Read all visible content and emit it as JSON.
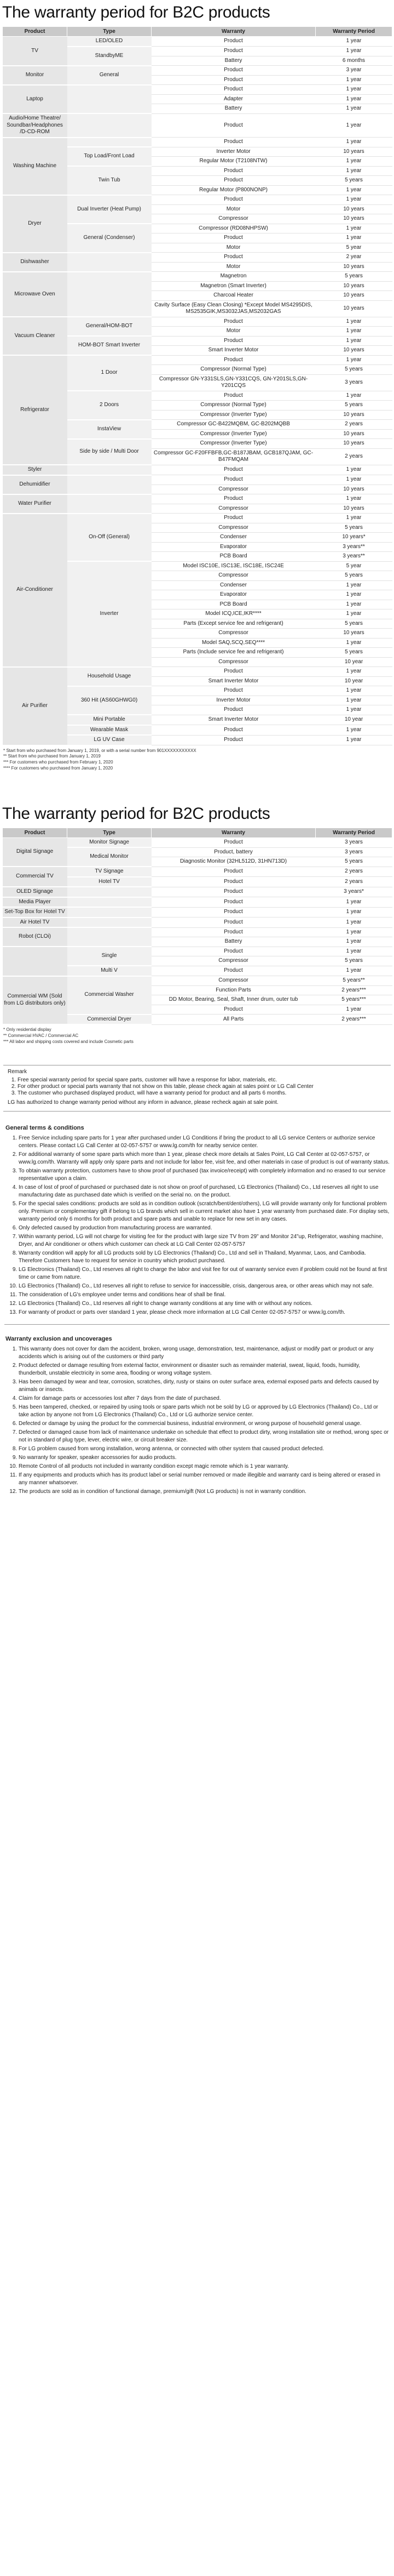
{
  "b2c": {
    "title": "The warranty period for B2C products",
    "headers": [
      "Product",
      "Type",
      "Warranty",
      "Warranty Period"
    ],
    "rows": [
      [
        "TV|3",
        "LED/OLED",
        "Product",
        "1 year"
      ],
      [
        "",
        "StandbyME|2",
        "Product",
        "1 year"
      ],
      [
        "",
        "",
        "Battery",
        "6 months"
      ],
      [
        "Monitor|2",
        "General|2",
        "Product",
        "3 year"
      ],
      [
        "",
        "",
        "Product",
        "1 year"
      ],
      [
        "Laptop|3",
        "|3",
        "Product",
        "1 year"
      ],
      [
        "",
        "",
        "Adapter",
        "1 year"
      ],
      [
        "",
        "",
        "Battery",
        "1 year"
      ],
      [
        "Audio/Home Theatre/ Soundbar/Headphones /D-CD-ROM",
        "",
        "Product",
        "1 year"
      ],
      [
        "Washing Machine|6",
        "|1",
        "Product",
        "1 year"
      ],
      [
        "",
        "Top Load/Front Load|2",
        "Inverter Motor",
        "10 years"
      ],
      [
        "",
        "",
        "Regular Motor  (T2108NTW)",
        "1 year"
      ],
      [
        "",
        "Twin Tub|3",
        "Product",
        "1 year"
      ],
      [
        "",
        "",
        "Product",
        "5 years"
      ],
      [
        "",
        "",
        "Regular Motor (P800NONP)",
        "1 year"
      ],
      [
        "Dryer|6",
        "Dual Inverter (Heat Pump)|3",
        "Product",
        "1 year"
      ],
      [
        "",
        "",
        "Motor",
        "10 years"
      ],
      [
        "",
        "",
        "Compressor",
        "10 years"
      ],
      [
        "",
        "General (Condenser)|3",
        "Compressor (RD08NHPSW)",
        "1 year"
      ],
      [
        "",
        "",
        "Product",
        "1 year"
      ],
      [
        "",
        "",
        "Motor",
        "5 year"
      ],
      [
        "Dishwasher|2",
        "|2",
        "Product",
        "2 year"
      ],
      [
        "",
        "",
        "Motor",
        "10 years"
      ],
      [
        "Microwave Oven|4",
        "|4",
        "Magnetron",
        "5 years"
      ],
      [
        "",
        "",
        "Magnetron (Smart Inverter)",
        "10 years"
      ],
      [
        "",
        "",
        "Charcoal Heater",
        "10 years"
      ],
      [
        "",
        "",
        "Cavity Surface (Easy Clean Closing) *Except Model MS4295DIS, MS2535GIK,MS3032JAS,MS2032GAS",
        "10 years"
      ],
      [
        "Vacuum Cleaner|4",
        "General/HOM-BOT|2",
        "Product",
        "1 year"
      ],
      [
        "",
        "",
        "Motor",
        "1 year"
      ],
      [
        "",
        "HOM-BOT Smart Inverter|2",
        "Product",
        "1 year"
      ],
      [
        "",
        "",
        "Smart Inverter Motor",
        "10 years"
      ],
      [
        "Refrigerator|10",
        "1 Door|3",
        "Product",
        "1 year"
      ],
      [
        "",
        "",
        "Compressor (Normal Type)",
        "5 years"
      ],
      [
        "",
        "",
        "Compressor GN-Y331SLS,GN-Y331CQS, GN-Y201SLS,GN-Y201CQS",
        "3 years"
      ],
      [
        "",
        "2 Doors|3",
        "Product",
        "1 year"
      ],
      [
        "",
        "",
        "Compressor (Normal Type)",
        "5 years"
      ],
      [
        "",
        "",
        "Compressor (Inverter Type)",
        "10 years"
      ],
      [
        "",
        "InstaView|2",
        "Compressor GC-B422MQBM, GC-B202MQBB",
        "2 years"
      ],
      [
        "",
        "",
        "Compressor (Inverter Type)",
        "10 years"
      ],
      [
        "",
        "Side by side / Multi Door|2",
        "Compressor (Inverter Type)",
        "10 years"
      ],
      [
        "",
        "",
        "Compressor GC-F20FFBFB,GC-B187JBAM, GCB187QJAM, GC-B47FMQAM",
        "2 years"
      ],
      [
        "Styler",
        "",
        "Product",
        "1 year"
      ],
      [
        "Dehumidifier|2",
        "|2",
        "Product",
        "1 year"
      ],
      [
        "",
        "",
        "Compressor",
        "10 years"
      ],
      [
        "Water Purifier|2",
        "|2",
        "Product",
        "1 year"
      ],
      [
        "",
        "",
        "Compressor",
        "10 years"
      ],
      [
        "Air-Conditioner|16",
        "On-Off (General)|5",
        "Product",
        "1 year"
      ],
      [
        "",
        "",
        "Compressor",
        "5 years"
      ],
      [
        "",
        "",
        "Condenser",
        "10 years*"
      ],
      [
        "",
        "",
        "Evaporator",
        "3 years**"
      ],
      [
        "",
        "",
        "PCB Board",
        "3 years**"
      ],
      [
        "",
        "Inverter|11",
        "Model ISC10E, ISC13E, ISC18E, ISC24E",
        "5 year"
      ],
      [
        "",
        "",
        "Compressor",
        "5 years"
      ],
      [
        "",
        "",
        "Condenser",
        "1 year"
      ],
      [
        "",
        "",
        "Evaporator",
        "1 year"
      ],
      [
        "",
        "",
        "PCB Board",
        "1 year"
      ],
      [
        "",
        "",
        "Model ICQ,ICE,IKR****",
        "1 year"
      ],
      [
        "",
        "",
        "Parts (Except service fee and refrigerant)",
        "5 years"
      ],
      [
        "",
        "",
        "Compressor",
        "10 years"
      ],
      [
        "",
        "",
        "Model SAQ,SCQ,SEQ****",
        "1 year"
      ],
      [
        "",
        "",
        "Parts (Include service fee and refrigerant)",
        "5 years"
      ],
      [
        "",
        "",
        "Compressor",
        "10 year"
      ],
      [
        "Air Purifier|8",
        "Household Usage|2",
        "Product",
        "1 year"
      ],
      [
        "",
        "",
        "Smart Inverter Motor",
        "10 year"
      ],
      [
        "",
        "360 Hit (AS60GHWG0)|3",
        "Product",
        "1 year"
      ],
      [
        "",
        "",
        "Inverter Motor",
        "1 year"
      ],
      [
        "",
        "",
        "Product",
        "1 year"
      ],
      [
        "",
        "Mini Portable|1",
        "Smart Inverter Motor",
        "10 year"
      ],
      [
        "",
        "Wearable Mask|1",
        "Product",
        "1 year"
      ],
      [
        "",
        "LG UV Case|1",
        "Product",
        "1 year"
      ]
    ],
    "notes": [
      "* Start from who purchased from January 1, 2019, or with a serial number from 901XXXXXXXXXXX",
      "** Start from who purchased from January 1, 2019",
      "*** For customers who purchased from February 1, 2020",
      "**** For customers who purchased from January 1, 2020"
    ]
  },
  "b2b": {
    "title": "The warranty period for B2C products",
    "headers": [
      "Product",
      "Type",
      "Warranty",
      "Warranty Period"
    ],
    "rows": [
      [
        "Digital Signage|3",
        "Monitor Signage",
        "Product",
        "3 years"
      ],
      [
        "",
        "Medical Monitor|2",
        "Product, battery",
        "3 years"
      ],
      [
        "",
        "",
        "Diagnostic Monitor (32HL512D, 31HN713D)",
        "5 years"
      ],
      [
        "Commercial TV|2",
        "TV Signage",
        "Product",
        "2 years"
      ],
      [
        "",
        "Hotel TV",
        "Product",
        "2 years"
      ],
      [
        "OLED Signage",
        "",
        "Product",
        "3 years*"
      ],
      [
        "Media Player",
        "",
        "Product",
        "1 year"
      ],
      [
        "Set-Top Box for Hotel TV",
        "",
        "Product",
        "1 year"
      ],
      [
        "Air Hotel TV",
        "",
        "Product",
        "1 year"
      ],
      [
        "Robot (CLOi)|2",
        "|2",
        "Product",
        "1 year"
      ],
      [
        "",
        "",
        "Battery",
        "1 year"
      ],
      [
        "|3",
        "Single|2",
        "Product",
        "1 year"
      ],
      [
        "",
        "",
        "Compressor",
        "5 years"
      ],
      [
        "",
        "Multi V",
        "Product",
        "1 year"
      ],
      [
        "Commercial WM (Sold from LG distributors only)|5",
        "Commercial Washer|4",
        "Compressor",
        "5 years**"
      ],
      [
        "",
        "",
        "Function Parts",
        "2 years***"
      ],
      [
        "",
        "",
        "DD Motor, Bearing, Seal, Shaft, Inner drum, outer tub",
        "5 years***"
      ],
      [
        "",
        "",
        "Product",
        "1 year"
      ],
      [
        "",
        "Commercial Dryer|1",
        "All Parts",
        "2 years***"
      ]
    ],
    "notes": [
      "* Only residential display",
      "** Commercial HVAC / Commercial AC",
      "*** All labor and shipping costs covered and include Cosmetic parts"
    ]
  },
  "remark": {
    "title": "Remark",
    "items": [
      "Free special warranty period for special spare parts, customer will have a response for labor, materials, etc.",
      "For other product or special parts warranty that not show on this table, please check again at sales point or LG Call Center",
      "The customer who purchased displayed product, will have a warranty period for product and all parts 6 months."
    ],
    "footer": "LG has authorized to change warranty period without any inform in advance, please recheck again at sale point."
  },
  "terms": {
    "title": "General terms & conditions",
    "items": [
      "Free Service including spare parts for 1 year after purchased under LG Conditions if bring the product to all LG service Centers or authorize service centers. Please contact LG Call Center at 02-057-5757 or www.lg.com/th for nearby service center.",
      "For additional warranty of some spare parts which more than 1 year, please check more details at Sales Point, LG Call Center at 02-057-5757, or www.lg.com/th. Warranty will apply only spare parts and not include for labor fee, visit fee, and other materials in case of product is out of warranty status.",
      "To obtain warranty protection, customers have to show proof of purchased (tax invoice/receipt) with completely information and no erased to our service representative upon a claim.",
      "In case of lost of proof of purchased or purchased date is not show on proof of purchased, LG Electronics (Thailand) Co., Ltd reserves all right to use manufacturing date as purchased date which is verified on the serial no. on the product.",
      "For the special sales conditions: products are sold as in condition outlook (scratch/bent/dent/others), LG will provide warranty only for functional problem only. Premium or complementary gift if belong to LG brands which sell in current market also have 1 year warranty from purchased date. For display sets, warranty period only 6 months for both product and spare parts and unable to replace for new set in any cases.",
      "Only defected caused by production from manufacturing process are warranted.",
      "Within warranty period, LG will not charge for visiting fee for the product with large size TV from 29\" and Monitor 24\"up, Refrigerator, washing machine, Dryer, and Air conditioner or others which customer can check at LG Call Center 02-057-5757",
      "Warranty condition will apply for all LG products sold by LG Electronics (Thailand) Co., Ltd and sell in Thailand, Myanmar, Laos, and Cambodia. Therefore Customers have to request for service in country which product purchased.",
      "LG Electronics (Thailand) Co., Ltd reserves all right to charge the labor and visit fee for out of warranty service even if problem could not be found at first time or came from nature.",
      "LG Electronics (Thailand) Co., Ltd reserves all right to refuse to service for inaccessible, crisis, dangerous area, or other areas which may not safe.",
      "The consideration of LG's employee under terms and conditions hear of shall be final.",
      "LG Electronics (Thailand) Co., Ltd reserves all right to change warranty conditions at any time with or without any notices.",
      "For warranty of product or parts over standard 1 year, please check more information at LG Call Center 02-057-5757 or www.lg.com/th."
    ]
  },
  "exclusion": {
    "title": "Warranty exclusion and uncoverages",
    "items": [
      "This warranty does not cover for dam the accident, broken, wrong usage, demonstration, test, maintenance, adjust or modify part or product or any accidents which is arising out of the customers or third party",
      "Product defected or damage resulting from external factor, environment or disaster such as remainder material, sweat, liquid, foods, humidity, thunderbolt, unstable electricity in some area, flooding or wrong voltage system.",
      "Has been damaged by wear and tear, corrosion, scratches, dirty, rusty or stains on outer surface area, external exposed parts and defects caused by animals or insects.",
      "Claim for damage parts or accessories lost after 7 days from the date of purchased.",
      "Has been tampered, checked, or repaired by using tools or spare parts which not be sold by LG or approved by LG Electronics (Thailand) Co., Ltd or take action by anyone not from LG Electronics (Thailand) Co., Ltd or LG authorize service center.",
      "Defected or damage by using the product for the commercial business, industrial environment, or wrong purpose of household general usage.",
      "Defected or damaged cause from lack of maintenance undertake on schedule that effect to product dirty, wrong installation site or method, wrong spec or not in standard of plug type, lever, electric wire, or circuit breaker size.",
      "For LG problem caused from wrong installation, wrong antenna, or connected with other system that caused product defected.",
      "No warranty for speaker, speaker accessories for audio products.",
      "Remote Control of all products not included in warranty condition except magic remote which is 1 year warranty.",
      "If any equipments and products which has its product label or serial number removed or made illegible and warranty card is being altered or erased in any manner whatsoever.",
      "The products are sold as in condition of functional damage, premium/gift (Not LG products) is not in warranty condition."
    ]
  }
}
